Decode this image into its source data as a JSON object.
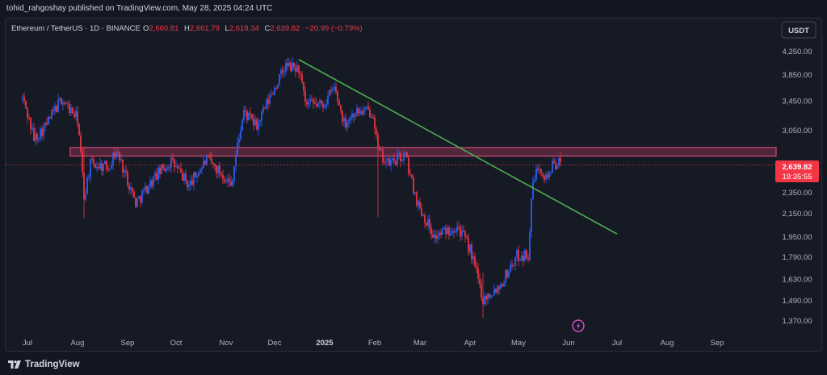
{
  "header": {
    "publisher_line": "tohid_rahgoshay published on TradingView.com, May 28, 2025 04:24 UTC"
  },
  "legend": {
    "symbol": "Ethereum / TetherUS · 1D · BINANCE",
    "o_label": "O",
    "o_value": "2,660.81",
    "h_label": "H",
    "h_value": "2,661.79",
    "l_label": "L",
    "l_value": "2,618.34",
    "c_label": "C",
    "c_value": "2,639.82",
    "change": "−20.99 (−0.79%)"
  },
  "currency_button": "USDT",
  "price_label": {
    "value": "2,639.82",
    "countdown": "19:35:55"
  },
  "footer": {
    "brand": "TradingView"
  },
  "colors": {
    "up": "#2962ff",
    "down": "#f23645",
    "trendline": "#4caf50",
    "zone": "#b5395f",
    "last_price_line": "#f23645"
  },
  "chart_data": {
    "type": "candlestick",
    "symbol": "ETHUSDT",
    "interval": "1D",
    "y_ticks": [
      "4,250.00",
      "3,850.00",
      "3,450.00",
      "3,050.00",
      "2,350.00",
      "2,150.00",
      "1,950.00",
      "1,790.00",
      "1,630.00",
      "1,490.00",
      "1,370.00"
    ],
    "x_ticks": [
      "Jul",
      "Aug",
      "Sep",
      "Oct",
      "Nov",
      "Dec",
      "2025",
      "Feb",
      "Mar",
      "Apr",
      "May",
      "Jun",
      "Jul",
      "Aug",
      "Sep"
    ],
    "x_tick_values": [
      "2024-07-01",
      "2024-08-01",
      "2024-09-01",
      "2024-10-01",
      "2024-11-01",
      "2024-12-01",
      "2025-01-01",
      "2025-02-01",
      "2025-03-01",
      "2025-04-01",
      "2025-05-01",
      "2025-06-01",
      "2025-07-01",
      "2025-08-01",
      "2025-09-01"
    ],
    "last_price": 2639.82,
    "resistance_zone": [
      2740,
      2840
    ],
    "trendline": {
      "start": [
        "2024-12-16",
        4110
      ],
      "end": [
        "2025-07-01",
        1975
      ]
    },
    "anchors": [
      [
        "2024-06-28",
        3500
      ],
      [
        "2024-07-05",
        2950
      ],
      [
        "2024-07-12",
        3100
      ],
      [
        "2024-07-22",
        3480
      ],
      [
        "2024-08-01",
        3200
      ],
      [
        "2024-08-05",
        2300
      ],
      [
        "2024-08-09",
        2650
      ],
      [
        "2024-08-20",
        2620
      ],
      [
        "2024-08-25",
        2800
      ],
      [
        "2024-09-06",
        2250
      ],
      [
        "2024-09-20",
        2550
      ],
      [
        "2024-09-28",
        2680
      ],
      [
        "2024-10-09",
        2420
      ],
      [
        "2024-10-20",
        2700
      ],
      [
        "2024-11-01",
        2500
      ],
      [
        "2024-11-04",
        2420
      ],
      [
        "2024-11-12",
        3300
      ],
      [
        "2024-11-20",
        3100
      ],
      [
        "2024-12-08",
        4000
      ],
      [
        "2024-12-16",
        3950
      ],
      [
        "2024-12-20",
        3400
      ],
      [
        "2024-12-31",
        3400
      ],
      [
        "2025-01-07",
        3650
      ],
      [
        "2025-01-13",
        3150
      ],
      [
        "2025-01-20",
        3300
      ],
      [
        "2025-01-31",
        3300
      ],
      [
        "2025-02-03",
        2800
      ],
      [
        "2025-02-09",
        2650
      ],
      [
        "2025-02-20",
        2750
      ],
      [
        "2025-02-24",
        2450
      ],
      [
        "2025-02-28",
        2230
      ],
      [
        "2025-03-10",
        1950
      ],
      [
        "2025-03-24",
        2050
      ],
      [
        "2025-04-01",
        1850
      ],
      [
        "2025-04-09",
        1500
      ],
      [
        "2025-04-20",
        1600
      ],
      [
        "2025-04-30",
        1800
      ],
      [
        "2025-05-07",
        1810
      ],
      [
        "2025-05-10",
        2450
      ],
      [
        "2025-05-14",
        2650
      ],
      [
        "2025-05-18",
        2500
      ],
      [
        "2025-05-23",
        2650
      ],
      [
        "2025-05-27",
        2660
      ]
    ]
  }
}
